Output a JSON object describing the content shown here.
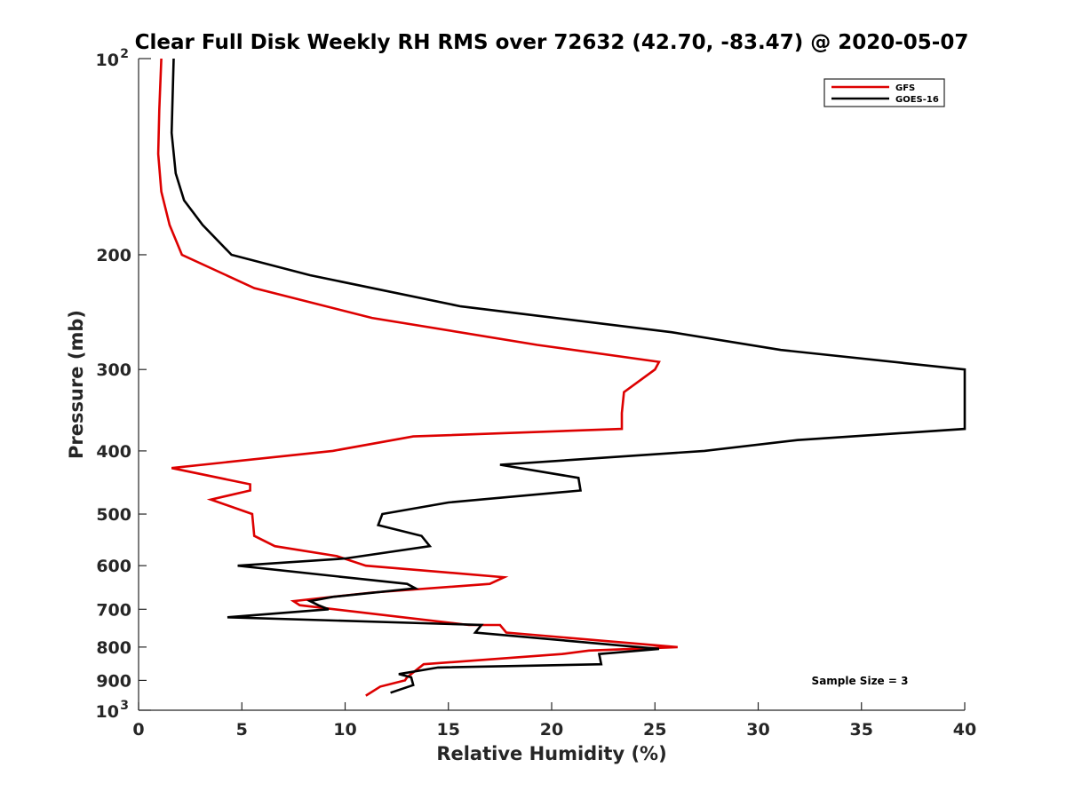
{
  "chart_data": {
    "type": "line",
    "title": "Clear Full Disk Weekly RH RMS over 72632 (42.70, -83.47) @ 2020-05-07",
    "xlabel": "Relative Humidity (%)",
    "ylabel": "Pressure (mb)",
    "xlim": [
      0,
      40
    ],
    "ylim": [
      100,
      1000
    ],
    "y_scale": "log",
    "y_reversed": true,
    "x_ticks": [
      0,
      5,
      10,
      15,
      20,
      25,
      30,
      35,
      40
    ],
    "x_tick_labels": [
      "0",
      "5",
      "10",
      "15",
      "20",
      "25",
      "30",
      "35",
      "40"
    ],
    "y_ticks": [
      200,
      300,
      400,
      500,
      600,
      700,
      800,
      900
    ],
    "y_tick_labels": [
      "200",
      "300",
      "400",
      "500",
      "600",
      "700",
      "800",
      "900"
    ],
    "y_decade_labels": [
      {
        "value": 100,
        "base": "10",
        "exp": "2"
      },
      {
        "value": 1000,
        "base": "10",
        "exp": "3"
      }
    ],
    "grid": false,
    "legend_position": "top-right",
    "series": [
      {
        "name": "GFS",
        "color": "#dd0000",
        "points": [
          [
            1.1,
            100
          ],
          [
            1.0,
            120
          ],
          [
            0.95,
            140
          ],
          [
            1.1,
            160
          ],
          [
            1.5,
            180
          ],
          [
            2.1,
            200
          ],
          [
            5.6,
            225
          ],
          [
            11.3,
            250
          ],
          [
            19.3,
            275
          ],
          [
            25.2,
            292
          ],
          [
            25.0,
            300
          ],
          [
            23.5,
            325
          ],
          [
            23.4,
            350
          ],
          [
            23.4,
            370
          ],
          [
            13.3,
            380
          ],
          [
            9.4,
            400
          ],
          [
            1.6,
            425
          ],
          [
            5.4,
            450
          ],
          [
            5.4,
            460
          ],
          [
            3.5,
            475
          ],
          [
            5.5,
            500
          ],
          [
            5.6,
            540
          ],
          [
            6.6,
            560
          ],
          [
            9.6,
            580
          ],
          [
            11.0,
            600
          ],
          [
            17.7,
            625
          ],
          [
            17.0,
            640
          ],
          [
            11.3,
            660
          ],
          [
            7.5,
            680
          ],
          [
            7.8,
            690
          ],
          [
            16.0,
            740
          ],
          [
            17.5,
            740
          ],
          [
            17.8,
            760
          ],
          [
            26.1,
            800
          ],
          [
            21.8,
            810
          ],
          [
            20.5,
            820
          ],
          [
            13.8,
            850
          ],
          [
            13.0,
            890
          ],
          [
            12.9,
            900
          ],
          [
            11.7,
            920
          ],
          [
            11.0,
            950
          ]
        ]
      },
      {
        "name": "GOES-16",
        "color": "#000000",
        "points": [
          [
            1.7,
            100
          ],
          [
            1.6,
            130
          ],
          [
            1.8,
            150
          ],
          [
            2.2,
            165
          ],
          [
            3.1,
            180
          ],
          [
            4.5,
            200
          ],
          [
            8.3,
            215
          ],
          [
            15.6,
            240
          ],
          [
            25.8,
            263
          ],
          [
            31.1,
            280
          ],
          [
            40,
            300
          ],
          [
            40,
            370
          ],
          [
            31.9,
            385
          ],
          [
            27.4,
            400
          ],
          [
            17.5,
            420
          ],
          [
            21.3,
            440
          ],
          [
            21.4,
            460
          ],
          [
            15.0,
            480
          ],
          [
            11.8,
            500
          ],
          [
            11.6,
            520
          ],
          [
            13.7,
            540
          ],
          [
            14.1,
            560
          ],
          [
            10.0,
            585
          ],
          [
            4.8,
            600
          ],
          [
            13.0,
            640
          ],
          [
            13.4,
            650
          ],
          [
            9.4,
            670
          ],
          [
            8.3,
            680
          ],
          [
            8.7,
            690
          ],
          [
            9.2,
            700
          ],
          [
            4.3,
            720
          ],
          [
            16.6,
            740
          ],
          [
            16.3,
            760
          ],
          [
            25.2,
            805
          ],
          [
            22.3,
            820
          ],
          [
            22.4,
            850
          ],
          [
            14.5,
            860
          ],
          [
            12.6,
            880
          ],
          [
            13.2,
            890
          ],
          [
            13.3,
            915
          ],
          [
            12.2,
            940
          ]
        ]
      }
    ],
    "annotations": [
      "Sample Size = 3"
    ]
  }
}
